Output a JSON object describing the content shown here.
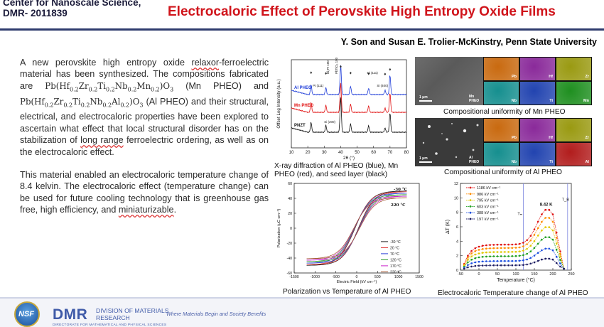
{
  "header": {
    "center_label": "Center for Nanoscale Science, DMR- 2011839",
    "title": "Electrocaloric Effect of Perovskite High Entropy Oxide Films",
    "authors": "Y. Son and Susan E. Trolier-McKinstry, Penn State University"
  },
  "body": {
    "p1_part1": "A new perovskite high entropy oxide",
    "p1_relaxor": "relaxor",
    "p1_part2": "-ferroelectric material has been synthesized. The compositions fabricated are",
    "p1_mn_label": "(Mn PHEO) and",
    "p1_al_label": "(Al PHEO) and their structural, electrical, and electrocaloric properties have been explored to ascertain what effect that local structural disorder has on the stabilization of",
    "p1_long_range": "long range",
    "p1_end": "ferroelectric ordering, as well as on the electrocaloric effect.",
    "p2_part1": "This material enabled an electrocaloric temperature change of 8.4 kelvin. The electrocaloric effect (temperature change) can be used for future cooling technology that is greenhouse gas free, high efficiency, and",
    "p2_miniaturizable": "miniaturizable",
    "p2_end": "."
  },
  "captions": {
    "xrd": "X-ray diffraction of Al PHEO (blue), Mn PHEO (red), and seed layer (black)",
    "sem_mn": "Compositional uniformity of Mn PHEO",
    "sem_al": "Compositional uniformity of Al PHEO",
    "pe": "Polarization vs Temperature of Al PHEO",
    "ec": "Electrocaloric Temperature change of Al PHEO"
  },
  "sem": {
    "mn_label": "Mn PHEO",
    "al_label": "Al PHEO",
    "scale": "1 μm",
    "mn_tiles": [
      {
        "el": "Pb",
        "color": "#c96a10"
      },
      {
        "el": "Hf",
        "color": "#8a2a9a"
      },
      {
        "el": "Zr",
        "color": "#9a9a12"
      },
      {
        "el": "Nb",
        "color": "#168f8f"
      },
      {
        "el": "Ti",
        "color": "#2244b0"
      },
      {
        "el": "Mn",
        "color": "#1f8f20"
      }
    ],
    "al_tiles": [
      {
        "el": "Pb",
        "color": "#c96a10"
      },
      {
        "el": "Hf",
        "color": "#8a2a9a"
      },
      {
        "el": "Zr",
        "color": "#9a9a12"
      },
      {
        "el": "Nb",
        "color": "#168f8f"
      },
      {
        "el": "Ti",
        "color": "#2244b0"
      },
      {
        "el": "Al",
        "color": "#b21d1d"
      }
    ]
  },
  "footer": {
    "nsf": "NSF",
    "dmr": "DMR",
    "dmr_name": "DIVISION OF MATERIALS RESEARCH",
    "dmr_sub": "DIRECTORATE FOR MATHEMATICAL AND PHYSICAL SCIENCES",
    "tagline": "Where Materials Begin and Society Benefits"
  },
  "chart_data": [
    {
      "type": "line",
      "name": "xrd",
      "xlabel": "2θ (°)",
      "ylabel": "Offset Log Intensity (a.u.)",
      "xlim": [
        10,
        80
      ],
      "xticks": [
        10,
        20,
        30,
        40,
        50,
        60,
        70,
        80
      ],
      "annotations": [
        "Pt (111)",
        "Ni (111)",
        "Si (400)",
        "Si (200)"
      ],
      "peak_labels": [
        "Bi₂Pt 100",
        "PbTiO₃ 100"
      ],
      "series": [
        {
          "name": "Al PHEO",
          "color": "#1e3cd8",
          "offset": 3
        },
        {
          "name": "Mn PHEO",
          "color": "#e01010",
          "offset": 2
        },
        {
          "name": "PNZT",
          "color": "#111111",
          "offset": 1
        }
      ],
      "peaks": [
        22,
        31,
        40,
        46,
        57,
        67,
        70
      ]
    },
    {
      "type": "line",
      "name": "polarization",
      "xlabel": "Electric Field (kV cm⁻¹)",
      "ylabel": "Polarization (μC cm⁻²)",
      "xlim": [
        -1500,
        1500
      ],
      "ylim": [
        -60,
        60
      ],
      "xticks": [
        -1500,
        -1000,
        -500,
        0,
        500,
        1000,
        1500
      ],
      "yticks": [
        -60,
        -40,
        -20,
        0,
        20,
        40,
        60
      ],
      "annotations": [
        "-30 °C",
        "220 °C"
      ],
      "series": [
        {
          "name": "-30 °C",
          "color": "#222222",
          "ps": 50
        },
        {
          "name": "20 °C",
          "color": "#e03030",
          "ps": 49
        },
        {
          "name": "70 °C",
          "color": "#2a3fd8",
          "ps": 47
        },
        {
          "name": "120 °C",
          "color": "#2a9a2a",
          "ps": 45
        },
        {
          "name": "170 °C",
          "color": "#cc22cc",
          "ps": 43
        },
        {
          "name": "220 °C",
          "color": "#a0522d",
          "ps": 41
        }
      ]
    },
    {
      "type": "line",
      "name": "electrocaloric",
      "xlabel": "Temperature (°C)",
      "ylabel": "ΔT (K)",
      "xlim": [
        -50,
        250
      ],
      "ylim": [
        0,
        12
      ],
      "xticks": [
        -50,
        0,
        50,
        100,
        150,
        200,
        250
      ],
      "yticks": [
        0,
        2,
        4,
        6,
        8,
        10,
        12
      ],
      "annotations": [
        "8.42 K",
        "Tₘ",
        "T_B"
      ],
      "markers_x": [
        120,
        240
      ],
      "x": [
        -40,
        -30,
        -20,
        -10,
        0,
        10,
        20,
        30,
        40,
        50,
        60,
        70,
        80,
        90,
        100,
        110,
        120,
        130,
        140,
        150,
        160,
        170,
        180,
        190,
        200,
        210,
        220,
        230
      ],
      "series": [
        {
          "name": "1186 kV cm⁻¹",
          "color": "#e01414",
          "peak": 8.42
        },
        {
          "name": "986 kV cm⁻¹",
          "color": "#ff8c00",
          "peak": 7.3
        },
        {
          "name": "795 kV cm⁻¹",
          "color": "#e0c800",
          "peak": 6.0
        },
        {
          "name": "603 kV cm⁻¹",
          "color": "#20a020",
          "peak": 4.6
        },
        {
          "name": "388 kV cm⁻¹",
          "color": "#1e50e0",
          "peak": 3.0
        },
        {
          "name": "197 kV cm⁻¹",
          "color": "#1a1a60",
          "peak": 1.6
        }
      ]
    }
  ]
}
